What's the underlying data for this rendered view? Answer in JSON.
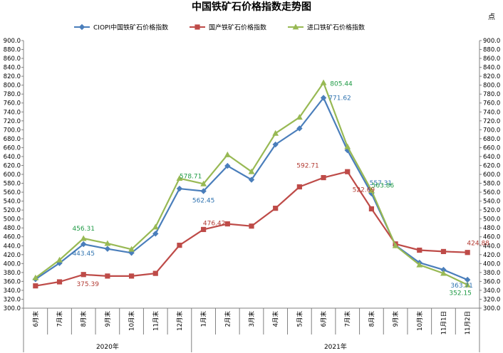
{
  "chart_data": {
    "type": "line",
    "title": "中国铁矿石价格指数走势图",
    "unit_label": "点",
    "ylim": [
      300,
      900
    ],
    "ytick_step": 20,
    "ytick_labels": [
      "300.0",
      "320.0",
      "340.0",
      "360.0",
      "380.0",
      "400.0",
      "420.0",
      "440.0",
      "460.0",
      "480.0",
      "500.0",
      "520.0",
      "540.0",
      "560.0",
      "580.0",
      "600.0",
      "620.0",
      "640.0",
      "660.0",
      "680.0",
      "700.0",
      "720.0",
      "740.0",
      "760.0",
      "780.0",
      "800.0",
      "820.0",
      "840.0",
      "860.0",
      "880.0",
      "900.0"
    ],
    "categories": [
      "6月末",
      "7月末",
      "8月末",
      "9月末",
      "10月末",
      "11月末",
      "12月末",
      "1月末",
      "2月末",
      "3月末",
      "4月末",
      "5月末",
      "6月末",
      "7月末",
      "8月末",
      "9月末",
      "10月末",
      "11月1日",
      "11月2日"
    ],
    "year_groups": [
      {
        "label": "2020年",
        "start": 0,
        "end": 6
      },
      {
        "label": "2021年",
        "start": 7,
        "end": 18
      }
    ],
    "legend_position": "top",
    "grid": false,
    "series": [
      {
        "name": "CIOPI中国铁矿石价格指数",
        "color": "#4A7EBB",
        "marker": "diamond",
        "values": [
          365,
          401,
          443.45,
          433,
          424,
          467,
          568,
          562.45,
          619,
          588,
          667,
          703,
          771.62,
          654,
          557.31,
          441,
          402,
          386,
          363.71
        ]
      },
      {
        "name": "国产铁矿石价格指数",
        "color": "#BE4B48",
        "marker": "square",
        "values": [
          350,
          359,
          375.39,
          372,
          372,
          378,
          441,
          476.42,
          489,
          484,
          524,
          572,
          592.71,
          606,
          522.69,
          444,
          430,
          427,
          424.88
        ]
      },
      {
        "name": "进口铁矿石价格指数",
        "color": "#98B954",
        "marker": "triangle",
        "values": [
          368,
          408,
          456.31,
          445,
          432,
          482,
          591,
          578.71,
          644,
          606,
          692,
          728,
          805.44,
          662,
          563.86,
          440,
          397,
          378,
          352.15
        ]
      }
    ],
    "annotations": [
      {
        "series": 0,
        "index": 2,
        "text": "443.45",
        "color": "#2F73B0"
      },
      {
        "series": 0,
        "index": 7,
        "text": "562.45",
        "color": "#2F73B0"
      },
      {
        "series": 0,
        "index": 12,
        "text": "771.62",
        "color": "#2F73B0"
      },
      {
        "series": 0,
        "index": 14,
        "text": "557.31",
        "color": "#2F73B0"
      },
      {
        "series": 0,
        "index": 18,
        "text": "363.71",
        "color": "#2F73B0"
      },
      {
        "series": 1,
        "index": 2,
        "text": "375.39",
        "color": "#B23A32"
      },
      {
        "series": 1,
        "index": 7,
        "text": "476.42",
        "color": "#B23A32"
      },
      {
        "series": 1,
        "index": 12,
        "text": "592.71",
        "color": "#B23A32"
      },
      {
        "series": 1,
        "index": 14,
        "text": "522.69",
        "color": "#B23A32"
      },
      {
        "series": 1,
        "index": 18,
        "text": "424.88",
        "color": "#B23A32"
      },
      {
        "series": 2,
        "index": 2,
        "text": "456.31",
        "color": "#1E9A44"
      },
      {
        "series": 2,
        "index": 7,
        "text": "578.71",
        "color": "#1E9A44"
      },
      {
        "series": 2,
        "index": 12,
        "text": "805.44",
        "color": "#1E9A44"
      },
      {
        "series": 2,
        "index": 14,
        "text": "563.86",
        "color": "#1E9A44"
      },
      {
        "series": 2,
        "index": 18,
        "text": "352.15",
        "color": "#1E9A44"
      }
    ]
  }
}
